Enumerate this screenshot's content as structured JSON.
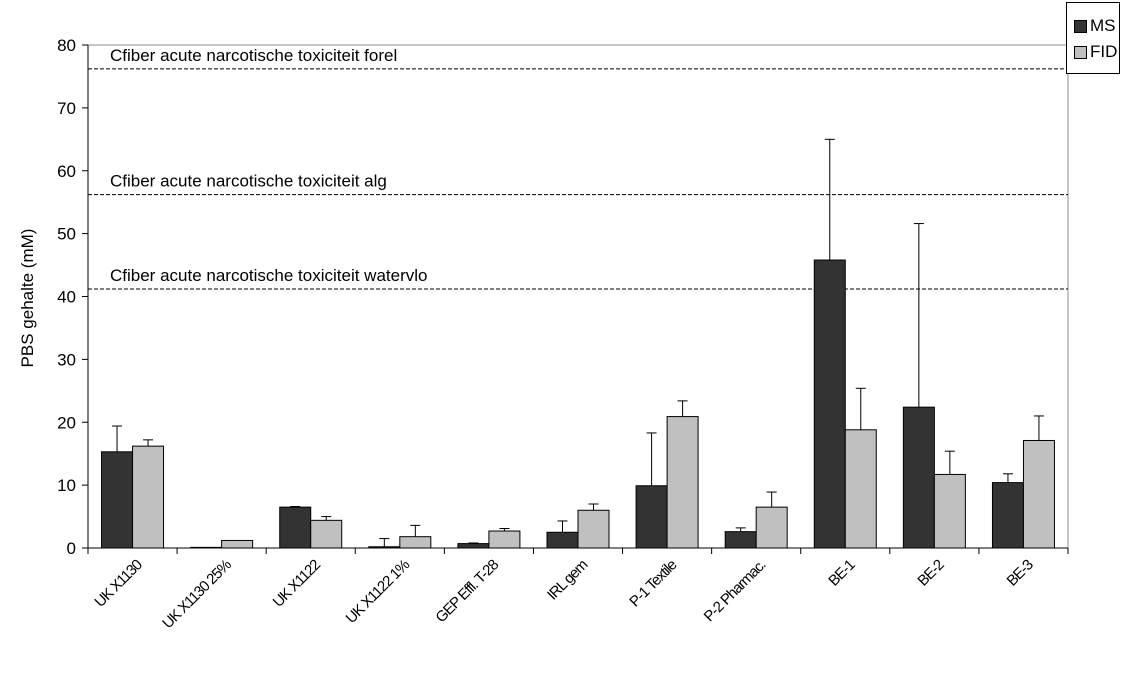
{
  "chart_data": {
    "type": "bar",
    "title": "",
    "xlabel": "",
    "ylabel": "PBS gehalte (mM)",
    "ylim": [
      0,
      80
    ],
    "yticks": [
      0,
      10,
      20,
      30,
      40,
      50,
      60,
      70,
      80
    ],
    "grid": false,
    "legend_position": "top-right",
    "categories": [
      "UK X1130",
      "UK X1130 25%",
      "UK X1122",
      "UK X1122 1%",
      "GEP Effl. T-28",
      "IRL gem",
      "P-1 Textile",
      "P-2 Pharmac.",
      "BE-1",
      "BE-2",
      "BE-3"
    ],
    "series": [
      {
        "name": "MS",
        "color": "#333333",
        "values": [
          15.3,
          0.1,
          6.5,
          0.2,
          0.7,
          2.5,
          9.9,
          2.6,
          45.8,
          22.4,
          10.4
        ],
        "error": [
          4.1,
          0,
          0.1,
          1.3,
          0.1,
          1.8,
          8.4,
          0.6,
          19.2,
          29.2,
          1.4
        ]
      },
      {
        "name": "FID",
        "color": "#c0c0c0",
        "values": [
          16.2,
          1.2,
          4.4,
          1.8,
          2.7,
          6.0,
          20.9,
          6.5,
          18.8,
          11.7,
          17.1
        ],
        "error": [
          1.0,
          0,
          0.6,
          1.8,
          0.4,
          1.0,
          2.5,
          2.4,
          6.6,
          3.7,
          3.9
        ]
      }
    ],
    "reference_lines": [
      {
        "value": 76.2,
        "label": "Cfiber acute narcotische toxiciteit forel"
      },
      {
        "value": 56.2,
        "label": "Cfiber acute narcotische toxiciteit alg"
      },
      {
        "value": 41.2,
        "label": "Cfiber acute narcotische toxiciteit watervlo"
      }
    ]
  }
}
